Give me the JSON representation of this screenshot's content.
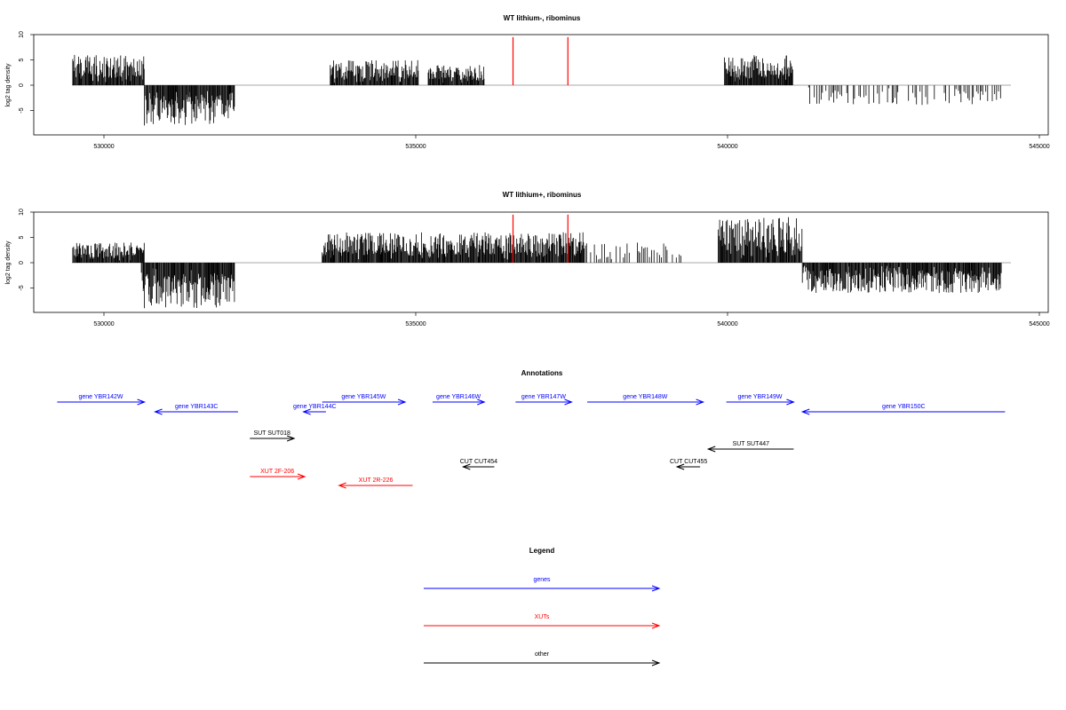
{
  "chart_data": [
    {
      "type": "bar",
      "title": "WT lithium-, ribominus",
      "ylabel": "log2 tag density",
      "xlim": [
        529000,
        545000
      ],
      "ylim": [
        -10,
        10
      ],
      "xticks": [
        530000,
        535000,
        540000,
        545000
      ],
      "yticks": [
        10,
        5,
        0,
        -5
      ],
      "grid": false,
      "red_markers_x": [
        536560,
        537440
      ],
      "density_runs": [
        {
          "x_start": 529500,
          "x_end": 530650,
          "strand": "+",
          "max": 6
        },
        {
          "x_start": 530650,
          "x_end": 532100,
          "strand": "-",
          "max": 8
        },
        {
          "x_start": 533630,
          "x_end": 535050,
          "strand": "+",
          "max": 5
        },
        {
          "x_start": 535200,
          "x_end": 536100,
          "strand": "+",
          "max": 4
        },
        {
          "x_start": 539950,
          "x_end": 541050,
          "strand": "+",
          "max": 6
        },
        {
          "x_start": 541300,
          "x_end": 544400,
          "strand": "-",
          "max": 4,
          "sparse": true
        }
      ]
    },
    {
      "type": "bar",
      "title": "WT lithium+, ribominus",
      "ylabel": "log2 tag density",
      "xlim": [
        529000,
        545000
      ],
      "ylim": [
        -10,
        10
      ],
      "xticks": [
        530000,
        535000,
        540000,
        545000
      ],
      "yticks": [
        10,
        5,
        0,
        -5
      ],
      "grid": false,
      "red_markers_x": [
        536560,
        537440
      ],
      "density_runs": [
        {
          "x_start": 529500,
          "x_end": 530650,
          "strand": "+",
          "max": 4
        },
        {
          "x_start": 530600,
          "x_end": 532100,
          "strand": "-",
          "max": 9
        },
        {
          "x_start": 533500,
          "x_end": 537700,
          "strand": "+",
          "max": 6
        },
        {
          "x_start": 537700,
          "x_end": 539300,
          "strand": "+",
          "max": 4,
          "sparse": true
        },
        {
          "x_start": 539850,
          "x_end": 541200,
          "strand": "+",
          "max": 9
        },
        {
          "x_start": 541200,
          "x_end": 544400,
          "strand": "-",
          "max": 6
        }
      ]
    }
  ],
  "annotations": {
    "title": "Annotations",
    "features": [
      {
        "label": "gene YBR142W",
        "category": "genes",
        "strand": "+",
        "start": 529250,
        "end": 530650,
        "row": 1
      },
      {
        "label": "gene YBR143C",
        "category": "genes",
        "strand": "-",
        "start": 530820,
        "end": 532150,
        "row": 2
      },
      {
        "label": "gene YBR144C",
        "category": "genes",
        "strand": "-",
        "start": 533200,
        "end": 533560,
        "row": 2
      },
      {
        "label": "gene YBR145W",
        "category": "genes",
        "strand": "+",
        "start": 533500,
        "end": 534830,
        "row": 1
      },
      {
        "label": "gene YBR146W",
        "category": "genes",
        "strand": "+",
        "start": 535270,
        "end": 536100,
        "row": 1
      },
      {
        "label": "gene YBR147W",
        "category": "genes",
        "strand": "+",
        "start": 536600,
        "end": 537500,
        "row": 1
      },
      {
        "label": "gene YBR148W",
        "category": "genes",
        "strand": "+",
        "start": 537750,
        "end": 539610,
        "row": 1
      },
      {
        "label": "gene YBR149W",
        "category": "genes",
        "strand": "+",
        "start": 539980,
        "end": 541060,
        "row": 1
      },
      {
        "label": "gene YBR150C",
        "category": "genes",
        "strand": "-",
        "start": 541200,
        "end": 544450,
        "row": 2
      },
      {
        "label": "SUT SUT018",
        "category": "other",
        "strand": "+",
        "start": 532340,
        "end": 533050,
        "row": 3
      },
      {
        "label": "SUT SUT447",
        "category": "other",
        "strand": "-",
        "start": 539690,
        "end": 541060,
        "row": 4
      },
      {
        "label": "CUT CUT454",
        "category": "other",
        "strand": "-",
        "start": 535760,
        "end": 536260,
        "row": 5
      },
      {
        "label": "CUT CUT455",
        "category": "other",
        "strand": "-",
        "start": 539190,
        "end": 539560,
        "row": 5
      },
      {
        "label": "XUT 2F-206",
        "category": "XUTs",
        "strand": "+",
        "start": 532340,
        "end": 533220,
        "row": 6
      },
      {
        "label": "XUT 2R-226",
        "category": "XUTs",
        "strand": "-",
        "start": 533770,
        "end": 534950,
        "row": 7
      }
    ]
  },
  "legend": {
    "title": "Legend",
    "items": [
      {
        "label": "genes",
        "color": "#0000ff"
      },
      {
        "label": "XUTs",
        "color": "#ff0000"
      },
      {
        "label": "other",
        "color": "#000000"
      }
    ]
  },
  "colors": {
    "genes": "#0000ff",
    "XUTs": "#ff0000",
    "other": "#000000",
    "marker": "#ff0000",
    "bars": "#000000"
  }
}
